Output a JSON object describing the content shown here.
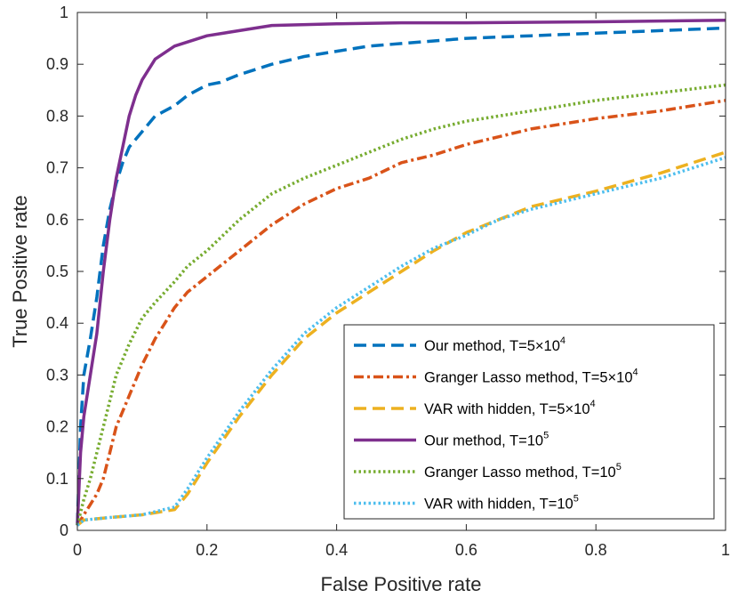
{
  "chart_data": {
    "type": "line",
    "title": "",
    "xlabel": "False Positive rate",
    "ylabel": "True Positive rate",
    "xlim": [
      0,
      1
    ],
    "ylim": [
      0,
      1
    ],
    "xticks": [
      0,
      0.2,
      0.4,
      0.6,
      0.8,
      1
    ],
    "xtick_labels": [
      "0",
      "0.2",
      "0.4",
      "0.6",
      "0.8",
      "1"
    ],
    "yticks": [
      0,
      0.1,
      0.2,
      0.3,
      0.4,
      0.5,
      0.6,
      0.7,
      0.8,
      0.9,
      1
    ],
    "ytick_labels": [
      "0",
      "0.1",
      "0.2",
      "0.3",
      "0.4",
      "0.5",
      "0.6",
      "0.7",
      "0.8",
      "0.9",
      "1"
    ],
    "grid": false,
    "legend_position": "bottom-right",
    "series": [
      {
        "key": "our-method-5e4",
        "label_main": "Our method, T=5",
        "label_times": "×",
        "label_base": "10",
        "label_exp": "4",
        "color": "#0072BD",
        "style": "dashed",
        "x": [
          0,
          0.005,
          0.01,
          0.02,
          0.03,
          0.04,
          0.05,
          0.06,
          0.07,
          0.08,
          0.1,
          0.12,
          0.15,
          0.17,
          0.2,
          0.22,
          0.25,
          0.3,
          0.35,
          0.4,
          0.45,
          0.5,
          0.55,
          0.6,
          0.7,
          0.8,
          0.9,
          1.0
        ],
        "y": [
          0.01,
          0.2,
          0.3,
          0.37,
          0.45,
          0.55,
          0.62,
          0.67,
          0.71,
          0.74,
          0.77,
          0.8,
          0.82,
          0.84,
          0.86,
          0.865,
          0.88,
          0.9,
          0.915,
          0.925,
          0.935,
          0.94,
          0.945,
          0.95,
          0.955,
          0.96,
          0.965,
          0.97
        ]
      },
      {
        "key": "granger-lasso-5e4",
        "label_main": "Granger Lasso method, T=5",
        "label_times": "×",
        "label_base": "10",
        "label_exp": "4",
        "color": "#D95319",
        "style": "dashdot",
        "x": [
          0,
          0.01,
          0.02,
          0.03,
          0.04,
          0.05,
          0.06,
          0.08,
          0.1,
          0.12,
          0.15,
          0.17,
          0.2,
          0.25,
          0.3,
          0.35,
          0.4,
          0.45,
          0.5,
          0.55,
          0.6,
          0.65,
          0.7,
          0.8,
          0.9,
          1.0
        ],
        "y": [
          0.01,
          0.03,
          0.05,
          0.07,
          0.1,
          0.15,
          0.2,
          0.26,
          0.32,
          0.37,
          0.43,
          0.46,
          0.49,
          0.54,
          0.59,
          0.63,
          0.66,
          0.68,
          0.71,
          0.725,
          0.745,
          0.76,
          0.775,
          0.795,
          0.81,
          0.83
        ]
      },
      {
        "key": "var-hidden-5e4",
        "label_main": "VAR with hidden, T=5",
        "label_times": "×",
        "label_base": "10",
        "label_exp": "4",
        "color": "#EDB120",
        "style": "dashed",
        "x": [
          0,
          0.01,
          0.05,
          0.1,
          0.15,
          0.17,
          0.2,
          0.25,
          0.3,
          0.35,
          0.4,
          0.45,
          0.5,
          0.55,
          0.6,
          0.65,
          0.7,
          0.8,
          0.9,
          1.0
        ],
        "y": [
          0.01,
          0.02,
          0.025,
          0.03,
          0.04,
          0.07,
          0.13,
          0.22,
          0.3,
          0.37,
          0.42,
          0.46,
          0.5,
          0.54,
          0.575,
          0.6,
          0.625,
          0.655,
          0.69,
          0.73
        ]
      },
      {
        "key": "our-method-1e5",
        "label_main": "Our method, T=",
        "label_times": "",
        "label_base": "10",
        "label_exp": "5",
        "color": "#7E2F8E",
        "style": "solid",
        "x": [
          0,
          0.005,
          0.01,
          0.02,
          0.03,
          0.04,
          0.05,
          0.06,
          0.07,
          0.08,
          0.09,
          0.1,
          0.12,
          0.15,
          0.2,
          0.25,
          0.3,
          0.4,
          0.5,
          0.6,
          0.8,
          1.0
        ],
        "y": [
          0.01,
          0.15,
          0.22,
          0.3,
          0.38,
          0.5,
          0.6,
          0.68,
          0.74,
          0.8,
          0.84,
          0.87,
          0.91,
          0.935,
          0.955,
          0.965,
          0.975,
          0.978,
          0.98,
          0.98,
          0.982,
          0.985
        ]
      },
      {
        "key": "granger-lasso-1e5",
        "label_main": "Granger Lasso method, T=",
        "label_times": "",
        "label_base": "10",
        "label_exp": "5",
        "color": "#77AC30",
        "style": "dotted",
        "x": [
          0,
          0.01,
          0.02,
          0.03,
          0.04,
          0.05,
          0.06,
          0.08,
          0.1,
          0.12,
          0.15,
          0.17,
          0.2,
          0.25,
          0.3,
          0.35,
          0.4,
          0.45,
          0.5,
          0.55,
          0.6,
          0.65,
          0.7,
          0.8,
          0.9,
          1.0
        ],
        "y": [
          0.01,
          0.06,
          0.1,
          0.15,
          0.2,
          0.25,
          0.3,
          0.36,
          0.41,
          0.44,
          0.48,
          0.51,
          0.54,
          0.6,
          0.65,
          0.68,
          0.705,
          0.73,
          0.755,
          0.775,
          0.79,
          0.8,
          0.81,
          0.83,
          0.845,
          0.86
        ]
      },
      {
        "key": "var-hidden-1e5",
        "label_main": "VAR with hidden, T=",
        "label_times": "",
        "label_base": "10",
        "label_exp": "5",
        "color": "#4DBEEE",
        "style": "dotted",
        "x": [
          0,
          0.01,
          0.05,
          0.1,
          0.15,
          0.17,
          0.2,
          0.25,
          0.3,
          0.35,
          0.4,
          0.45,
          0.5,
          0.55,
          0.6,
          0.65,
          0.7,
          0.8,
          0.9,
          1.0
        ],
        "y": [
          0.01,
          0.02,
          0.025,
          0.03,
          0.045,
          0.08,
          0.14,
          0.23,
          0.31,
          0.38,
          0.43,
          0.47,
          0.51,
          0.545,
          0.57,
          0.6,
          0.62,
          0.65,
          0.68,
          0.72
        ]
      }
    ]
  }
}
